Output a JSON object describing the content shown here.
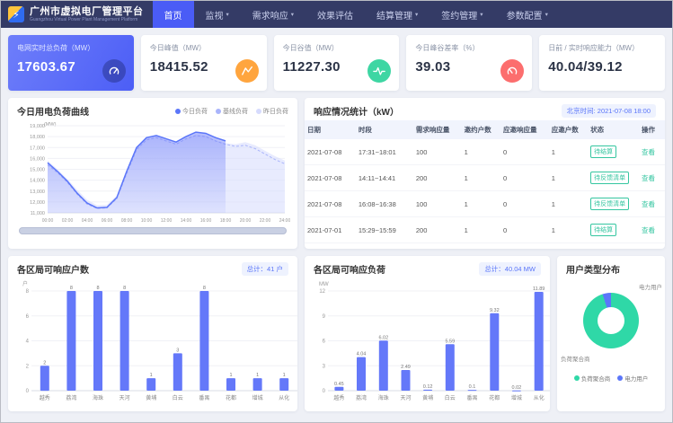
{
  "app": {
    "title": "广州市虚拟电厂管理平台",
    "subtitle": "Guangzhou Virtual Power Plant Management Platform"
  },
  "nav": {
    "items": [
      {
        "label": "首页",
        "active": true,
        "caret": false
      },
      {
        "label": "监视",
        "active": false,
        "caret": true
      },
      {
        "label": "需求响应",
        "active": false,
        "caret": true
      },
      {
        "label": "效果评估",
        "active": false,
        "caret": false
      },
      {
        "label": "结算管理",
        "active": false,
        "caret": true
      },
      {
        "label": "签约管理",
        "active": false,
        "caret": true
      },
      {
        "label": "参数配置",
        "active": false,
        "caret": true
      }
    ]
  },
  "kpis": [
    {
      "label": "电网实时总负荷（MW）",
      "value": "17603.67",
      "icon": "gauge-icon",
      "primary": true
    },
    {
      "label": "今日峰值（MW）",
      "value": "18415.52",
      "icon": "peak-icon",
      "icon_color": "#FFA53E",
      "primary": false
    },
    {
      "label": "今日谷值（MW）",
      "value": "11227.30",
      "icon": "pulse-icon",
      "icon_color": "#3ED6A3",
      "primary": false
    },
    {
      "label": "今日峰谷差率（%）",
      "value": "39.03",
      "icon": "meter-icon",
      "icon_color": "#FC6E6E",
      "primary": false
    },
    {
      "label": "日前 / 实时响应能力（MW）",
      "value": "40.04/39.12",
      "icon": null,
      "primary": false
    }
  ],
  "chart_data": [
    {
      "id": "load_chart",
      "type": "area",
      "title": "今日用电负荷曲线",
      "unit": "(MW)",
      "ymin": 11000,
      "ymax": 19000,
      "ystep": 1000,
      "x_ticks": [
        "00:00",
        "02:00",
        "04:00",
        "06:00",
        "08:00",
        "10:00",
        "12:00",
        "14:00",
        "16:00",
        "18:00",
        "20:00",
        "22:00",
        "24:00"
      ],
      "series": [
        {
          "name": "今日负荷",
          "color": "#5b76f9",
          "start_hour": 0,
          "values": [
            15600,
            14800,
            13900,
            12800,
            11900,
            11450,
            11500,
            12400,
            14800,
            17000,
            17900,
            18100,
            17800,
            17500,
            18000,
            18415,
            18300,
            17900,
            17604
          ]
        },
        {
          "name": "基线负荷",
          "color": "#a9b4fb",
          "start_hour": 0,
          "values": [
            15400,
            14700,
            13800,
            12700,
            11800,
            11400,
            11450,
            12300,
            14600,
            16800,
            17700,
            17900,
            17600,
            17300,
            17800,
            18100,
            18000,
            17600,
            17300,
            17100,
            17200,
            16900,
            16400,
            15900,
            15500
          ]
        },
        {
          "name": "昨日负荷",
          "color": "#d6dbfd",
          "start_hour": 0,
          "values": [
            15800,
            15000,
            14100,
            13100,
            12200,
            11700,
            11750,
            12600,
            15000,
            17100,
            17800,
            18000,
            17700,
            17400,
            17800,
            18200,
            18100,
            17700,
            17400,
            17300,
            17500,
            17200,
            16700,
            16200,
            15800
          ]
        }
      ]
    },
    {
      "id": "district_users_chart",
      "type": "bar",
      "title": "各区局可响应户数",
      "total_tag": "总计：41 户",
      "unit": "户",
      "ymax": 8,
      "ystep": 2,
      "categories": [
        "越秀",
        "荔湾",
        "海珠",
        "天河",
        "黄埔",
        "白云",
        "番禺",
        "花都",
        "增城",
        "从化"
      ],
      "values": [
        2,
        8,
        8,
        8,
        1,
        3,
        8,
        1,
        1,
        1
      ]
    },
    {
      "id": "district_load_chart",
      "type": "bar",
      "title": "各区局可响应负荷",
      "total_tag": "总计：40.04 MW",
      "unit": "MW",
      "ymax": 12,
      "ystep": 3,
      "categories": [
        "越秀",
        "荔湾",
        "海珠",
        "天河",
        "黄埔",
        "白云",
        "番禺",
        "花都",
        "增城",
        "从化"
      ],
      "values": [
        0.45,
        4.04,
        6.02,
        2.49,
        0.12,
        5.59,
        0.1,
        9.32,
        0.02,
        11.89
      ]
    },
    {
      "id": "user_type_chart",
      "type": "pie",
      "title": "用户类型分布",
      "segments": [
        {
          "label": "负荷聚合商",
          "value": 95.1,
          "color": "#2fd8a7"
        },
        {
          "label": "电力用户",
          "value": 4.9,
          "color": "#5b76f9"
        }
      ]
    }
  ],
  "response_table": {
    "title": "响应情况统计（kW）",
    "timestamp": "北京时间: 2021-07-08 18:00",
    "columns": [
      "日期",
      "时段",
      "需求响应量",
      "邀约户数",
      "应邀响应量",
      "应邀户数",
      "状态",
      "操作"
    ],
    "rows": [
      {
        "date": "2021-07-08",
        "period": "17:31~18:01",
        "demand": "100",
        "invited": "1",
        "responded": "0",
        "resp_users": "1",
        "status": "待结算",
        "action": "查看"
      },
      {
        "date": "2021-07-08",
        "period": "14:11~14:41",
        "demand": "200",
        "invited": "1",
        "responded": "0",
        "resp_users": "1",
        "status": "待反馈清单",
        "action": "查看"
      },
      {
        "date": "2021-07-08",
        "period": "16:08~16:38",
        "demand": "100",
        "invited": "1",
        "responded": "0",
        "resp_users": "1",
        "status": "待反馈清单",
        "action": "查看"
      },
      {
        "date": "2021-07-01",
        "period": "15:29~15:59",
        "demand": "200",
        "invited": "1",
        "responded": "0",
        "resp_users": "1",
        "status": "待结算",
        "action": "查看"
      }
    ]
  },
  "colors": {
    "accent": "#4a5cf6",
    "bar": "#6478f9",
    "success": "#35c6a0",
    "navbar": "#343b66"
  }
}
